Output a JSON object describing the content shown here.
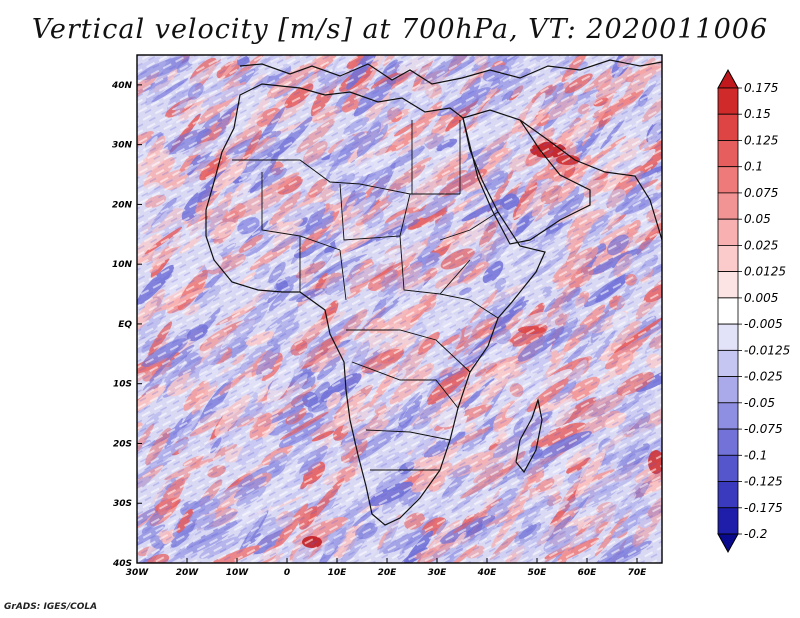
{
  "title": "Vertical velocity [m/s] at 700hPa, VT: 2020011006",
  "footer": "GrADS: IGES/COLA",
  "map": {
    "field": "vertical velocity",
    "level": "700hPa",
    "valid_time": "2020011006",
    "lon_range": [
      -30,
      75
    ],
    "lat_range": [
      -40,
      45
    ],
    "lat_labels": [
      "40N",
      "30N",
      "20N",
      "10N",
      "EQ",
      "10S",
      "20S",
      "30S",
      "40S"
    ],
    "lat_values": [
      40,
      30,
      20,
      10,
      0,
      -10,
      -20,
      -30,
      -40
    ],
    "lon_labels": [
      "30W",
      "20W",
      "10W",
      "0",
      "10E",
      "20E",
      "30E",
      "40E",
      "50E",
      "60E",
      "70E"
    ],
    "lon_values": [
      -30,
      -20,
      -10,
      0,
      10,
      20,
      30,
      40,
      50,
      60,
      70
    ]
  },
  "colorbar": {
    "labels": [
      "0.175",
      "0.15",
      "0.125",
      "0.1",
      "0.075",
      "0.05",
      "0.025",
      "0.0125",
      "0.005",
      "-0.005",
      "-0.0125",
      "-0.025",
      "-0.05",
      "-0.075",
      "-0.1",
      "-0.125",
      "-0.175",
      "-0.2"
    ],
    "colors": [
      "#c0181c",
      "#d02a2a",
      "#de4444",
      "#e65e5e",
      "#ee7a7a",
      "#f39494",
      "#f8b0b0",
      "#fbcaca",
      "#fde4e4",
      "#ffffff",
      "#e2e2f8",
      "#c6c6f2",
      "#aaaaea",
      "#8e8ee2",
      "#7272d8",
      "#5656cc",
      "#3a3abe",
      "#1e1eaa",
      "#0a0a8e"
    ]
  }
}
